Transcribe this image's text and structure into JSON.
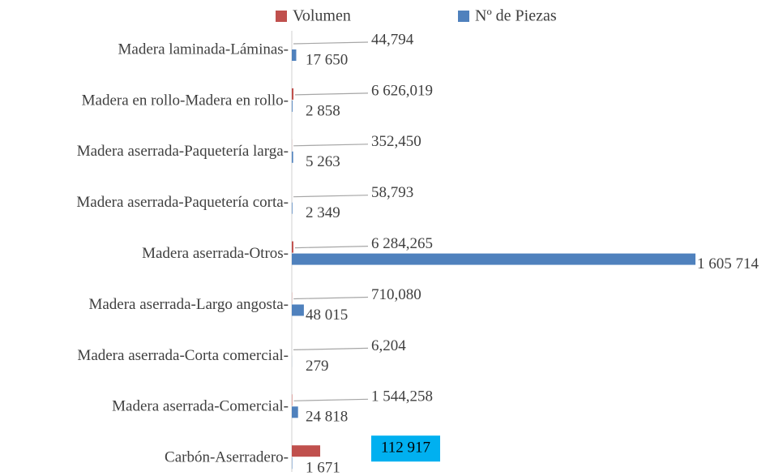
{
  "chart_data": {
    "type": "bar",
    "orientation": "horizontal",
    "categories": [
      "Madera laminada-Láminas-",
      "Madera en rollo-Madera en rollo-",
      "Madera aserrada-Paquetería larga-",
      "Madera aserrada-Paquetería corta-",
      "Madera aserrada-Otros-",
      "Madera aserrada-Largo angosta-",
      "Madera aserrada-Corta comercial-",
      "Madera aserrada-Comercial-",
      "Carbón-Aserradero-"
    ],
    "series": [
      {
        "name": "Volumen",
        "color": "#c0504d",
        "values": [
          44.794,
          6626.019,
          352.45,
          58.793,
          6284.265,
          710.08,
          6.204,
          1544.258,
          112917
        ],
        "value_labels": [
          "44,794",
          "6 626,019",
          "352,450",
          "58,793",
          "6 284,265",
          "710,080",
          "6,204",
          "1 544,258",
          "112 917"
        ]
      },
      {
        "name": "Nº de Piezas",
        "color": "#4f81bd",
        "values": [
          17650,
          2858,
          5263,
          2349,
          1605714,
          48015,
          279,
          24818,
          1671
        ],
        "value_labels": [
          "17 650",
          "2 858",
          "5 263",
          "2 349",
          "1 605 714",
          "48 015",
          "279",
          "24 818",
          "1 671"
        ]
      }
    ],
    "highlight": {
      "series": 0,
      "index": 8,
      "color": "#00b0f0"
    },
    "legend": "top"
  }
}
